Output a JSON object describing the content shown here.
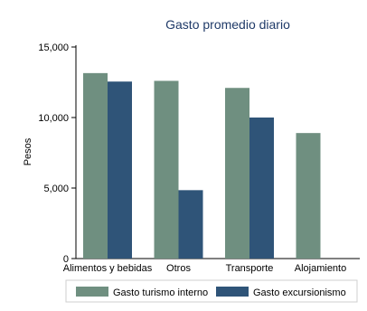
{
  "chart_data": {
    "type": "bar",
    "title": "Gasto promedio diario",
    "xlabel": "",
    "ylabel": "Pesos",
    "categories": [
      "Alimentos y bebidas",
      "Otros",
      "Transporte",
      "Alojamiento"
    ],
    "ylim": [
      0,
      15000
    ],
    "yticks": [
      {
        "value": 0,
        "label": "0"
      },
      {
        "value": 5000,
        "label": "5,000"
      },
      {
        "value": 10000,
        "label": "10,000"
      },
      {
        "value": 15000,
        "label": "15,000"
      }
    ],
    "series": [
      {
        "name": "Gasto turismo interno",
        "color": "#6f8f80",
        "values": [
          13150,
          12600,
          12100,
          8900
        ]
      },
      {
        "name": "Gasto excursionismo",
        "color": "#2f5478",
        "values": [
          12550,
          4850,
          10000,
          null
        ]
      }
    ],
    "grid": false,
    "legend_position": "bottom"
  }
}
